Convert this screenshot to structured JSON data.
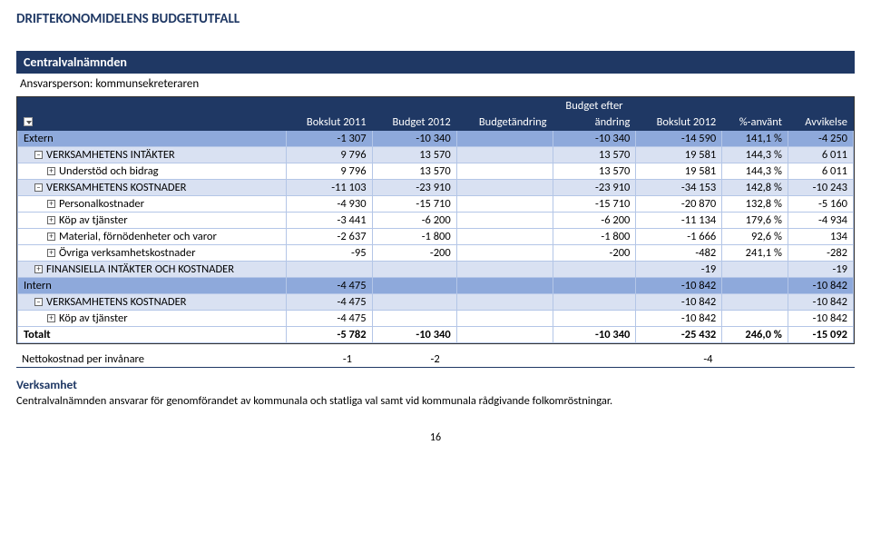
{
  "title": "DRIFTEKONOMIDELENS BUDGETUTFALL",
  "section": "Centralvalnämnden",
  "responsible_label": "Ansvarsperson: kommunsekreteraren",
  "columns": {
    "c1_top": "",
    "c1": "",
    "c2_top": "",
    "c2": "Bokslut 2011",
    "c3_top": "",
    "c3": "Budget 2012",
    "c4_top": "",
    "c4": "Budgetändring",
    "c5_top": "Budget efter",
    "c5": "ändring",
    "c6_top": "",
    "c6": "Bokslut 2012",
    "c7_top": "",
    "c7": "%-använt",
    "c8_top": "",
    "c8": "Avvikelse"
  },
  "rows": [
    {
      "style": "dark",
      "icon": "",
      "ind": 0,
      "label": "Extern",
      "v": [
        "-1 307",
        "-10 340",
        "",
        "-10 340",
        "-14 590",
        "141,1 %",
        "-4 250"
      ]
    },
    {
      "style": "med",
      "icon": "–",
      "ind": 1,
      "label": "VERKSAMHETENS INTÄKTER",
      "v": [
        "9 796",
        "13 570",
        "",
        "13 570",
        "19 581",
        "144,3 %",
        "6 011"
      ]
    },
    {
      "style": "lite",
      "icon": "+",
      "ind": 2,
      "label": "Understöd och bidrag",
      "v": [
        "9 796",
        "13 570",
        "",
        "13 570",
        "19 581",
        "144,3 %",
        "6 011"
      ]
    },
    {
      "style": "med",
      "icon": "–",
      "ind": 1,
      "label": "VERKSAMHETENS KOSTNADER",
      "v": [
        "-11 103",
        "-23 910",
        "",
        "-23 910",
        "-34 153",
        "142,8 %",
        "-10 243"
      ]
    },
    {
      "style": "lite",
      "icon": "+",
      "ind": 2,
      "label": "Personalkostnader",
      "v": [
        "-4 930",
        "-15 710",
        "",
        "-15 710",
        "-20 870",
        "132,8 %",
        "-5 160"
      ]
    },
    {
      "style": "lite",
      "icon": "+",
      "ind": 2,
      "label": "Köp av tjänster",
      "v": [
        "-3 441",
        "-6 200",
        "",
        "-6 200",
        "-11 134",
        "179,6 %",
        "-4 934"
      ]
    },
    {
      "style": "lite",
      "icon": "+",
      "ind": 2,
      "label": "Material, förnödenheter och varor",
      "v": [
        "-2 637",
        "-1 800",
        "",
        "-1 800",
        "-1 666",
        "92,6 %",
        "134"
      ]
    },
    {
      "style": "lite",
      "icon": "+",
      "ind": 2,
      "label": "Övriga verksamhetskostnader",
      "v": [
        "-95",
        "-200",
        "",
        "-200",
        "-482",
        "241,1 %",
        "-282"
      ]
    },
    {
      "style": "med",
      "icon": "+",
      "ind": 1,
      "label": "FINANSIELLA INTÄKTER OCH KOSTNADER",
      "v": [
        "",
        "",
        "",
        "",
        "-19",
        "",
        "-19"
      ]
    },
    {
      "style": "dark",
      "icon": "",
      "ind": 0,
      "label": "Intern",
      "v": [
        "-4 475",
        "",
        "",
        "",
        "-10 842",
        "",
        "-10 842"
      ]
    },
    {
      "style": "med",
      "icon": "–",
      "ind": 1,
      "label": "VERKSAMHETENS KOSTNADER",
      "v": [
        "-4 475",
        "",
        "",
        "",
        "-10 842",
        "",
        "-10 842"
      ]
    },
    {
      "style": "lite",
      "icon": "+",
      "ind": 2,
      "label": "Köp av tjänster",
      "v": [
        "-4 475",
        "",
        "",
        "",
        "-10 842",
        "",
        "-10 842"
      ]
    },
    {
      "style": "total",
      "icon": "",
      "ind": 0,
      "label": "Totalt",
      "v": [
        "-5 782",
        "-10 340",
        "",
        "-10 340",
        "-25 432",
        "246,0 %",
        "-15 092"
      ]
    }
  ],
  "nettokost": {
    "label": "Nettokostnad per invånare",
    "v": [
      "-1",
      "-2",
      "",
      "",
      "-4",
      "",
      ""
    ]
  },
  "verksamhet": {
    "heading": "Verksamhet",
    "text": "Centralvalnämnden ansvarar för genomförandet av kommunala och statliga val samt vid kommunala rådgivande folkomröstningar."
  },
  "pagenum": "16"
}
